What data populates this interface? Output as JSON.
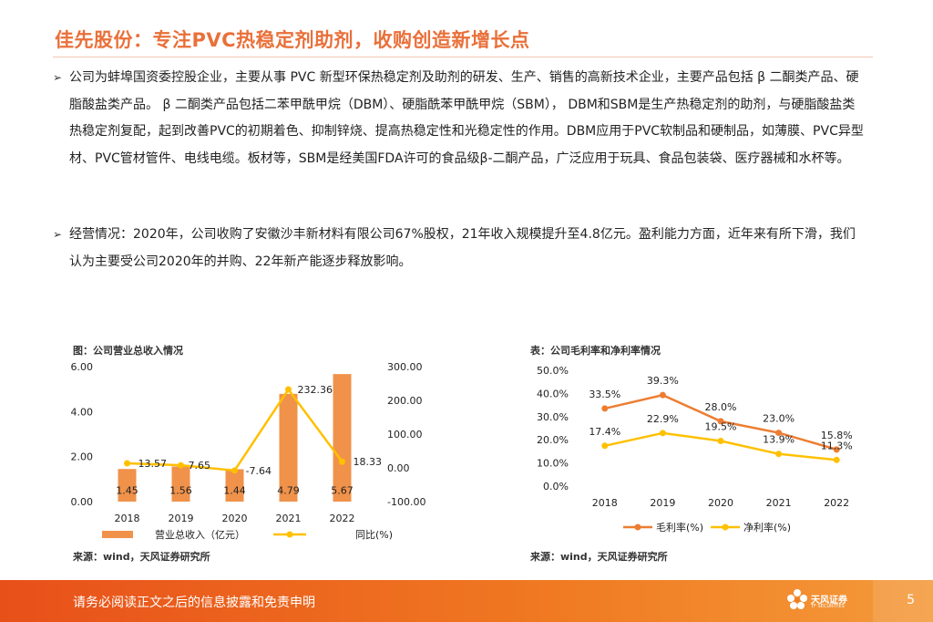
{
  "title": "佳先股份：专注PVC热稳定剂助剂，收购创造新增长点",
  "bullet_symbol": "➢",
  "paragraphs": [
    "公司为蚌埠国资委控股企业，主要从事 PVC 新型环保热稳定剂及助剂的研发、生产、销售的高新技术企业，主要产品包括 β 二酮类产品、硬脂酸盐类产品。 β 二酮类产品包括二苯甲酰甲烷（DBM）、硬脂酰苯甲酰甲烷（SBM）， DBM和SBM是生产热稳定剂的助剂，与硬脂酸盐类热稳定剂复配，起到改善PVC的初期着色、抑制锌烧、提高热稳定性和光稳定性的作用。DBM应用于PVC软制品和硬制品，如薄膜、PVC异型材、PVC管材管件、电线电缆。板材等，SBM是经美国FDA许可的食品级β-二酮产品，广泛应用于玩具、食品包装袋、医疗器械和水杯等。",
    "经营情况：2020年，公司收购了安徽沙丰新材料有限公司67%股权，21年收入规模提升至4.8亿元。盈利能力方面，近年来有所下滑，我们认为主要受公司2020年的并购、22年新产能逐步释放影响。"
  ],
  "chart_data": [
    {
      "type": "bar",
      "title": "图：公司营业总收入情况",
      "source": "来源：wind，天风证券研究所",
      "categories": [
        "2018",
        "2019",
        "2020",
        "2021",
        "2022"
      ],
      "series": [
        {
          "name": "营业总收入（亿元）",
          "type": "bar",
          "axis": "left",
          "values": [
            1.45,
            1.56,
            1.44,
            4.79,
            5.67
          ],
          "labels": [
            "1.45",
            "1.56",
            "1.44",
            "4.79",
            "5.67"
          ],
          "color": "#f0924a"
        },
        {
          "name": "同比(%)",
          "type": "line",
          "axis": "right",
          "values": [
            13.57,
            7.65,
            -7.64,
            232.36,
            18.33
          ],
          "labels": [
            "13.57",
            "7.65",
            "-7.64",
            "232.36",
            "18.33"
          ],
          "color": "#ffc000"
        }
      ],
      "left_axis": {
        "min": 0,
        "max": 6,
        "ticks": [
          "0.00",
          "2.00",
          "4.00",
          "6.00"
        ]
      },
      "right_axis": {
        "min": -100,
        "max": 300,
        "ticks": [
          "-100.00",
          "0.00",
          "100.00",
          "200.00",
          "300.00"
        ]
      }
    },
    {
      "type": "line",
      "title": "表：公司毛利率和净利率情况",
      "source": "来源：wind，天风证券研究所",
      "categories": [
        "2018",
        "2019",
        "2020",
        "2021",
        "2022"
      ],
      "series": [
        {
          "name": "毛利率(%)",
          "values": [
            33.5,
            39.3,
            28.0,
            23.0,
            15.8
          ],
          "labels": [
            "33.5%",
            "39.3%",
            "28.0%",
            "23.0%",
            "15.8%"
          ],
          "color": "#ed7d31"
        },
        {
          "name": "净利率(%)",
          "values": [
            17.4,
            22.9,
            19.5,
            13.9,
            11.3
          ],
          "labels": [
            "17.4%",
            "22.9%",
            "19.5%",
            "13.9%",
            "11.3%"
          ],
          "color": "#ffc000"
        }
      ],
      "y_axis": {
        "min": 0,
        "max": 50,
        "ticks": [
          "0.0%",
          "10.0%",
          "20.0%",
          "30.0%",
          "40.0%",
          "50.0%"
        ]
      }
    }
  ],
  "footer": {
    "disclaimer": "请务必阅读正文之后的信息披露和免责申明",
    "logo_name": "天风证券",
    "logo_sub": "TF SECURITIES",
    "page_number": "5"
  }
}
